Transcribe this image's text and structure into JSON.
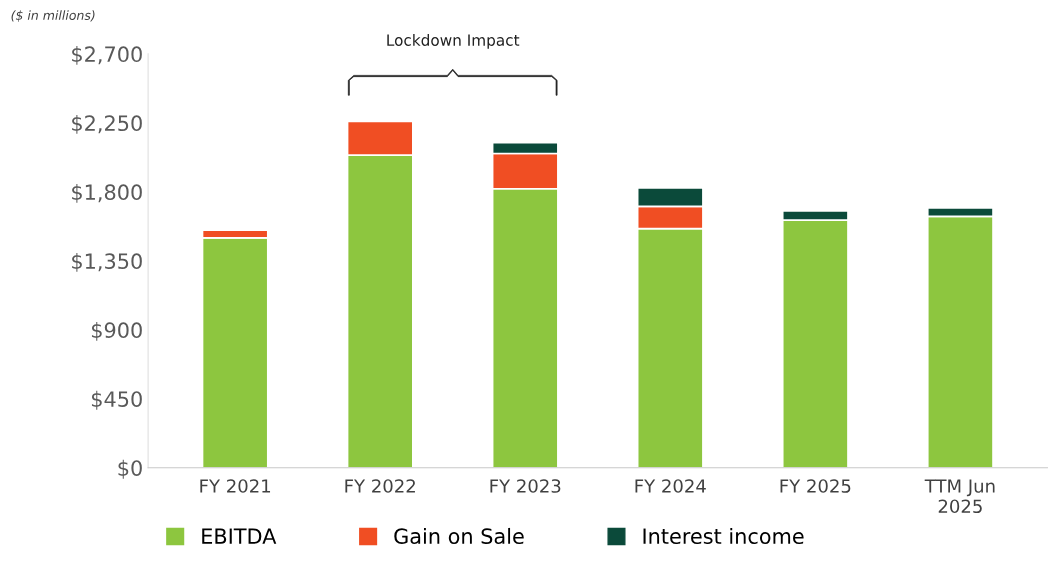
{
  "chart_data": {
    "type": "bar",
    "stacked": true,
    "categories": [
      "FY 2021",
      "FY 2022",
      "FY 2023",
      "FY 2024",
      "FY 2025",
      "TTM Jun\n2025"
    ],
    "series": [
      {
        "name": "EBITDA",
        "color": "#8dc63f",
        "values": [
          1500,
          2040,
          1820,
          1560,
          1615,
          1640
        ]
      },
      {
        "name": "Gain on Sale",
        "color": "#f04e23",
        "values": [
          50,
          220,
          230,
          145,
          null,
          null
        ]
      },
      {
        "name": "Interest income",
        "color": "#0b4a3a",
        "values": [
          null,
          null,
          70,
          120,
          60,
          55
        ]
      }
    ],
    "ylim": [
      0,
      2700
    ],
    "yticks": [
      {
        "value": 0,
        "label": "$0"
      },
      {
        "value": 450,
        "label": "$450"
      },
      {
        "value": 900,
        "label": "$900"
      },
      {
        "value": 1350,
        "label": "$1,350"
      },
      {
        "value": 1800,
        "label": "$1,800"
      },
      {
        "value": 2250,
        "label": "$2,250"
      },
      {
        "value": 2700,
        "label": "$2,700"
      }
    ],
    "grid": false,
    "legend": "bottom",
    "annotations": [
      "($ in millions)",
      "Lockdown Impact"
    ]
  }
}
